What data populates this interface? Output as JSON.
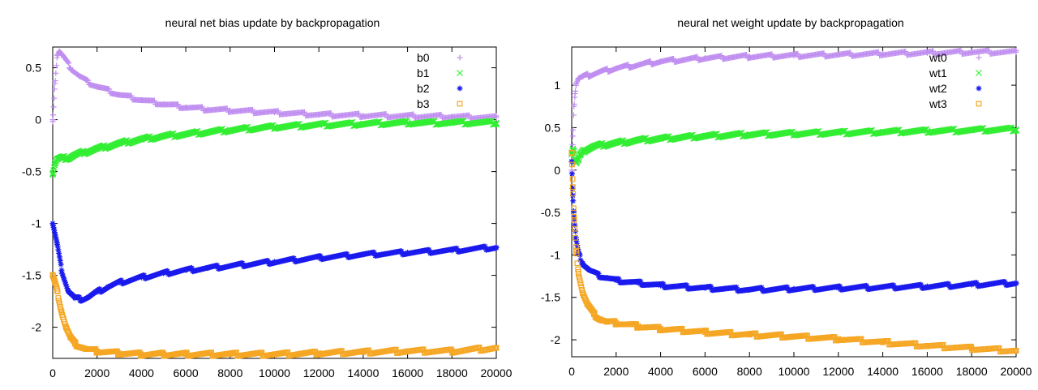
{
  "chart_data": [
    {
      "type": "scatter",
      "title": "neural net bias update by backpropagation",
      "xlabel": "",
      "ylabel": "",
      "xlim": [
        0,
        20000
      ],
      "ylim": [
        -2.3,
        0.7
      ],
      "xticks": [
        "0",
        "2000",
        "4000",
        "6000",
        "8000",
        "10000",
        "12000",
        "14000",
        "16000",
        "18000",
        "20000"
      ],
      "yticks": [
        {
          "value": 0.5,
          "label": "0.5"
        },
        {
          "value": 0,
          "label": "0"
        },
        {
          "value": -0.5,
          "label": "-0.5"
        },
        {
          "value": -1,
          "label": "-1"
        },
        {
          "value": -1.5,
          "label": "-1.5"
        },
        {
          "value": -2,
          "label": "-2"
        }
      ],
      "legend_position": "top-right",
      "series": [
        {
          "name": "b0",
          "marker": "plus",
          "color": "#c08ef0",
          "x": [
            0,
            100,
            200,
            300,
            500,
            800,
            1200,
            1600,
            2000,
            3000,
            4000,
            5000,
            6000,
            7000,
            8000,
            10000,
            12000,
            14000,
            16000,
            18000,
            20000
          ],
          "y": [
            0.0,
            0.35,
            0.62,
            0.66,
            0.6,
            0.5,
            0.42,
            0.36,
            0.32,
            0.24,
            0.19,
            0.15,
            0.12,
            0.1,
            0.09,
            0.07,
            0.05,
            0.04,
            0.035,
            0.03,
            0.02
          ]
        },
        {
          "name": "b1",
          "marker": "cross",
          "color": "#33ee33",
          "x": [
            0,
            100,
            200,
            400,
            700,
            1000,
            1500,
            2000,
            3000,
            4000,
            5000,
            6000,
            8000,
            10000,
            12000,
            14000,
            16000,
            18000,
            20000
          ],
          "y": [
            -0.52,
            -0.42,
            -0.38,
            -0.37,
            -0.37,
            -0.34,
            -0.31,
            -0.28,
            -0.23,
            -0.19,
            -0.16,
            -0.14,
            -0.1,
            -0.07,
            -0.05,
            -0.04,
            -0.03,
            -0.03,
            -0.03
          ]
        },
        {
          "name": "b2",
          "marker": "star",
          "color": "#1a1aee",
          "x": [
            0,
            200,
            400,
            700,
            1000,
            1300,
            1600,
            2000,
            2500,
            3000,
            4000,
            5000,
            6000,
            7000,
            8000,
            10000,
            12000,
            14000,
            16000,
            18000,
            20000
          ],
          "y": [
            -1.0,
            -1.2,
            -1.45,
            -1.65,
            -1.72,
            -1.73,
            -1.71,
            -1.66,
            -1.61,
            -1.57,
            -1.52,
            -1.48,
            -1.45,
            -1.43,
            -1.41,
            -1.37,
            -1.33,
            -1.3,
            -1.28,
            -1.26,
            -1.23
          ]
        },
        {
          "name": "b3",
          "marker": "square",
          "color": "#f5a623",
          "x": [
            0,
            200,
            400,
            600,
            800,
            1000,
            1500,
            2000,
            3000,
            4000,
            5000,
            6000,
            8000,
            10000,
            12000,
            14000,
            16000,
            18000,
            20000
          ],
          "y": [
            -1.5,
            -1.65,
            -1.85,
            -2.0,
            -2.1,
            -2.16,
            -2.21,
            -2.23,
            -2.25,
            -2.26,
            -2.26,
            -2.26,
            -2.26,
            -2.26,
            -2.25,
            -2.24,
            -2.23,
            -2.23,
            -2.2
          ]
        }
      ]
    },
    {
      "type": "scatter",
      "title": "neural net weight  update by backpropagation",
      "xlabel": "",
      "ylabel": "",
      "xlim": [
        0,
        20000
      ],
      "ylim": [
        -2.2,
        1.45
      ],
      "xticks": [
        "0",
        "2000",
        "4000",
        "6000",
        "8000",
        "10000",
        "12000",
        "14000",
        "16000",
        "18000",
        "20000"
      ],
      "yticks": [
        {
          "value": 1,
          "label": "1"
        },
        {
          "value": 0.5,
          "label": "0.5"
        },
        {
          "value": 0,
          "label": "0"
        },
        {
          "value": -0.5,
          "label": "-0.5"
        },
        {
          "value": -1,
          "label": "-1"
        },
        {
          "value": -1.5,
          "label": "-1.5"
        },
        {
          "value": -2,
          "label": "-2"
        }
      ],
      "legend_position": "top-right",
      "series": [
        {
          "name": "wt0",
          "marker": "plus",
          "color": "#c08ef0",
          "x": [
            0,
            50,
            100,
            150,
            200,
            300,
            500,
            800,
            1200,
            2000,
            3000,
            4000,
            5000,
            6000,
            8000,
            10000,
            12000,
            14000,
            16000,
            18000,
            20000
          ],
          "y": [
            0.0,
            0.4,
            0.75,
            0.9,
            1.02,
            1.08,
            1.1,
            1.12,
            1.15,
            1.2,
            1.24,
            1.28,
            1.3,
            1.32,
            1.34,
            1.35,
            1.36,
            1.37,
            1.38,
            1.39,
            1.39
          ]
        },
        {
          "name": "wt1",
          "marker": "cross",
          "color": "#33ee33",
          "x": [
            0,
            50,
            100,
            150,
            200,
            300,
            400,
            600,
            1000,
            1500,
            2000,
            3000,
            4000,
            6000,
            8000,
            10000,
            12000,
            14000,
            16000,
            18000,
            20000
          ],
          "y": [
            0.2,
            0.25,
            0.22,
            0.12,
            0.08,
            0.12,
            0.18,
            0.24,
            0.28,
            0.3,
            0.32,
            0.35,
            0.37,
            0.4,
            0.42,
            0.43,
            0.44,
            0.45,
            0.46,
            0.47,
            0.48
          ]
        },
        {
          "name": "wt2",
          "marker": "star",
          "color": "#1a1aee",
          "x": [
            0,
            50,
            100,
            200,
            300,
            500,
            800,
            1200,
            1600,
            2000,
            3000,
            4000,
            6000,
            8000,
            10000,
            12000,
            14000,
            16000,
            18000,
            20000
          ],
          "y": [
            0.1,
            -0.3,
            -0.55,
            -0.82,
            -0.98,
            -1.1,
            -1.18,
            -1.24,
            -1.27,
            -1.3,
            -1.33,
            -1.36,
            -1.39,
            -1.41,
            -1.4,
            -1.39,
            -1.38,
            -1.37,
            -1.35,
            -1.33
          ]
        },
        {
          "name": "wt3",
          "marker": "square",
          "color": "#f5a623",
          "x": [
            0,
            50,
            100,
            200,
            300,
            500,
            700,
            1000,
            1300,
            1600,
            2000,
            3000,
            4000,
            6000,
            8000,
            10000,
            12000,
            14000,
            16000,
            18000,
            20000
          ],
          "y": [
            0.2,
            -0.2,
            -0.55,
            -0.95,
            -1.2,
            -1.45,
            -1.58,
            -1.7,
            -1.76,
            -1.79,
            -1.8,
            -1.84,
            -1.87,
            -1.91,
            -1.94,
            -1.96,
            -1.99,
            -2.03,
            -2.07,
            -2.1,
            -2.13
          ]
        }
      ]
    }
  ]
}
